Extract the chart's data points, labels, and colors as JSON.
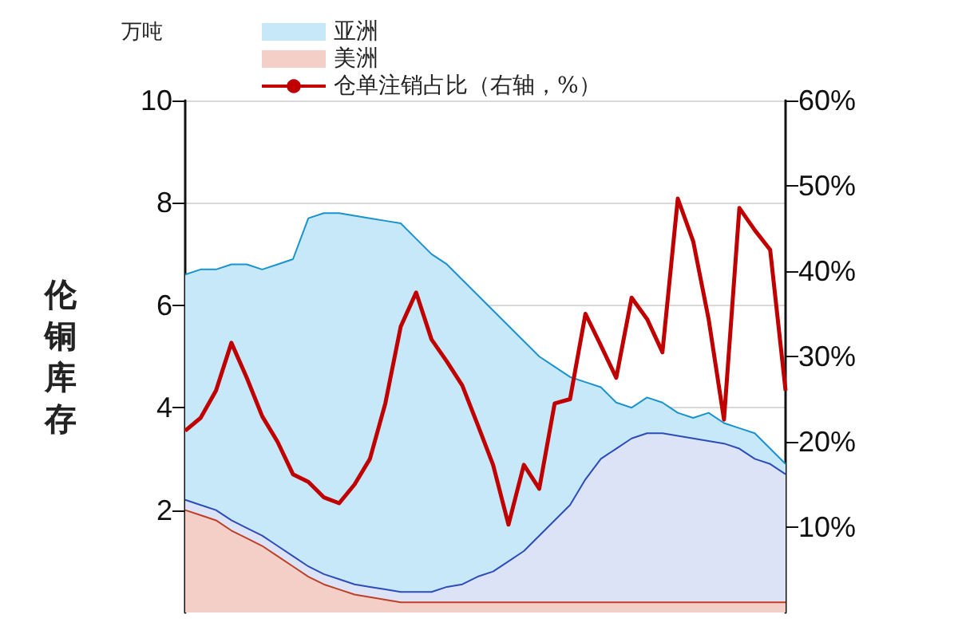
{
  "chart_data": {
    "type": "area",
    "stacked": true,
    "ylabel": "伦铜库存",
    "annotations": [
      "万吨"
    ],
    "categories": [
      null,
      null,
      null,
      null,
      null,
      null,
      null,
      null,
      null,
      null,
      null,
      null,
      null,
      null,
      null,
      null,
      null,
      null,
      null,
      null,
      null,
      null,
      null,
      null,
      null,
      null,
      null,
      null,
      null,
      null,
      null,
      null,
      null,
      null,
      null,
      null,
      null,
      null,
      null,
      null
    ],
    "ylim": [
      0,
      10
    ],
    "yticks": [
      2,
      4,
      6,
      8,
      10
    ],
    "y2lim": [
      0,
      60
    ],
    "y2ticks": [
      {
        "value": 10,
        "label": "10%"
      },
      {
        "value": 20,
        "label": "20%"
      },
      {
        "value": 30,
        "label": "30%"
      },
      {
        "value": 40,
        "label": "40%"
      },
      {
        "value": 50,
        "label": "50%"
      },
      {
        "value": 60,
        "label": "60%"
      }
    ],
    "series": [
      {
        "name": "美洲",
        "color": "#f4cfc8",
        "values": [
          2.0,
          1.9,
          1.8,
          1.6,
          1.45,
          1.3,
          1.1,
          0.9,
          0.7,
          0.55,
          0.45,
          0.35,
          0.3,
          0.25,
          0.2,
          0.2,
          0.2,
          0.2,
          0.2,
          0.2,
          0.2,
          0.2,
          0.2,
          0.2,
          0.2,
          0.2,
          0.2,
          0.2,
          0.2,
          0.2,
          0.2,
          0.2,
          0.2,
          0.2,
          0.2,
          0.2,
          0.2,
          0.2,
          0.2,
          0.2
        ]
      },
      {
        "color": "#dde3f7",
        "values": [
          0.2,
          0.2,
          0.2,
          0.2,
          0.2,
          0.2,
          0.2,
          0.2,
          0.2,
          0.2,
          0.2,
          0.2,
          0.2,
          0.2,
          0.2,
          0.2,
          0.2,
          0.3,
          0.35,
          0.5,
          0.6,
          0.8,
          1.0,
          1.3,
          1.6,
          1.9,
          2.4,
          2.8,
          3.0,
          3.2,
          3.3,
          3.3,
          3.25,
          3.2,
          3.15,
          3.1,
          3.0,
          2.8,
          2.7,
          2.5
        ]
      },
      {
        "name": "亚洲",
        "color": "#c6e8f8",
        "values": [
          4.4,
          4.6,
          4.7,
          5.0,
          5.15,
          5.2,
          5.5,
          5.8,
          6.8,
          7.05,
          7.15,
          7.2,
          7.2,
          7.2,
          7.2,
          6.9,
          6.6,
          6.3,
          5.95,
          5.5,
          5.1,
          4.6,
          4.1,
          3.5,
          3.0,
          2.5,
          1.9,
          1.4,
          0.9,
          0.6,
          0.7,
          0.6,
          0.45,
          0.4,
          0.55,
          0.4,
          0.4,
          0.5,
          0.3,
          0.2
        ]
      },
      {
        "name": "仓单注销占比（右轴，%）",
        "type": "line",
        "axis": "y2",
        "color": "#c00000",
        "values": [
          21.3,
          22.8,
          26,
          31.6,
          27.5,
          23,
          20,
          16.2,
          15.3,
          13.5,
          12.8,
          15,
          18,
          24.5,
          33.5,
          37.5,
          32,
          29.4,
          26.6,
          22,
          17.3,
          10.3,
          17.3,
          14.5,
          24.5,
          25,
          35,
          31.3,
          27.5,
          36.9,
          34.4,
          30.5,
          48.5,
          43.5,
          34.4,
          22.6,
          47.4,
          44.8,
          42.5,
          26
        ]
      }
    ],
    "grid": "y",
    "legend": "top left",
    "marker": "none"
  }
}
